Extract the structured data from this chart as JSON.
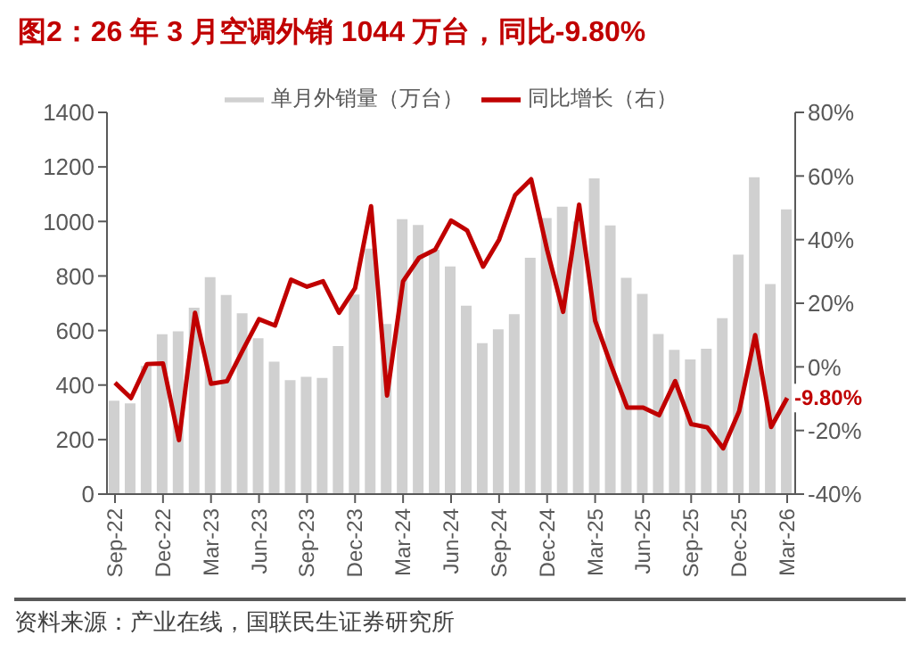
{
  "chart_data": {
    "type": "bar",
    "title": "图2：26 年 3 月空调外销 1044 万台，同比-9.80%",
    "categories": [
      "Sep-22",
      null,
      null,
      "Dec-22",
      null,
      null,
      "Mar-23",
      null,
      null,
      "Jun-23",
      null,
      null,
      "Sep-23",
      null,
      null,
      "Dec-23",
      null,
      null,
      "Mar-24",
      null,
      null,
      "Jun-24",
      null,
      null,
      "Sep-24",
      null,
      null,
      "Dec-24",
      null,
      null,
      "Mar-25",
      null,
      null,
      "Jun-25",
      null,
      null,
      "Sep-25",
      null,
      null,
      "Dec-25",
      null,
      null,
      "Mar-26"
    ],
    "series": [
      {
        "name": "单月外销量（万台）",
        "color": "#d0d0d0",
        "values": [
          343,
          333,
          470,
          586,
          597,
          684,
          796,
          730,
          663,
          572,
          486,
          418,
          430,
          426,
          543,
          732,
          900,
          624,
          1008,
          987,
          896,
          835,
          691,
          554,
          604,
          660,
          867,
          1012,
          1054,
          1000,
          1158,
          985,
          793,
          734,
          587,
          529,
          494,
          533,
          645,
          878,
          1162,
          770,
          1044
        ]
      },
      {
        "name": "同比增长（右）",
        "type": "line",
        "axis": "y2",
        "color": "#c00000",
        "values": [
          -5,
          -9.8,
          0.9,
          1.1,
          -23,
          17,
          -5.3,
          -4.5,
          5.4,
          15,
          13,
          27.4,
          25.2,
          26.9,
          17,
          24.7,
          50.5,
          -9,
          26.9,
          34.3,
          36.8,
          46,
          42.9,
          31.5,
          40,
          54,
          59,
          36.8,
          17.3,
          51,
          14.5,
          0.5,
          -12.8,
          -12.8,
          -15.2,
          -4.5,
          -18,
          -19,
          -25.6,
          -13.9,
          10,
          -18.9,
          -9.8
        ],
        "value_labels": [
          null,
          null,
          null,
          null,
          null,
          null,
          null,
          null,
          null,
          null,
          null,
          null,
          null,
          null,
          null,
          null,
          null,
          null,
          null,
          null,
          null,
          null,
          null,
          null,
          null,
          null,
          null,
          null,
          null,
          null,
          null,
          null,
          null,
          null,
          null,
          null,
          null,
          null,
          null,
          null,
          null,
          null,
          "-9.80%"
        ]
      }
    ],
    "ylim": [
      0,
      1400
    ],
    "yticks": [
      0,
      200,
      400,
      600,
      800,
      1000,
      1200,
      1400
    ],
    "y2lim": [
      -40,
      80
    ],
    "y2ticks": [
      {
        "value": -40,
        "label": "-40%"
      },
      {
        "value": -20,
        "label": "-20%"
      },
      {
        "value": 0,
        "label": "0%"
      },
      {
        "value": 20,
        "label": "20%"
      },
      {
        "value": 40,
        "label": "40%"
      },
      {
        "value": 60,
        "label": "60%"
      },
      {
        "value": 80,
        "label": "80%"
      }
    ],
    "legend": "top",
    "grid": false,
    "marker": "none",
    "line_style": "solid",
    "annotations": [
      "资料来源：产业在线，国联民生证券研究所"
    ]
  }
}
